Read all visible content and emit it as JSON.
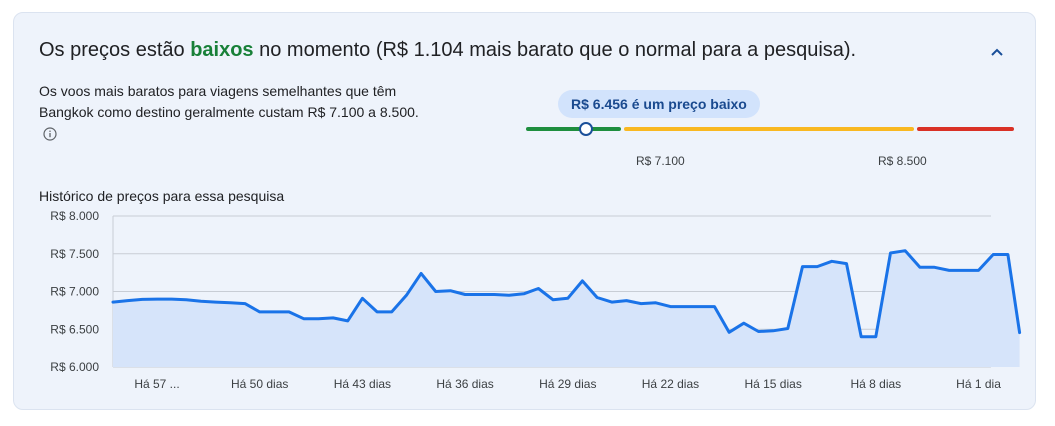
{
  "headline": {
    "prefix": "Os preços estão ",
    "emphasis": "baixos",
    "suffix": " no momento (R$ 1.104 mais barato que o normal para a pesquisa)."
  },
  "description": "Os voos mais baratos para viagens semelhantes que têm Bangkok como destino geralmente custam R$ 7.100 a 8.500.",
  "gauge": {
    "current_label": "R$ 6.456 é um preço baixo",
    "current_price": 6456,
    "low_threshold": 7100,
    "high_threshold": 8500,
    "tick_low": "R$ 7.100",
    "tick_high": "R$ 8.500",
    "colors": {
      "low": "#1e8e3e",
      "typical": "#f9b821",
      "high": "#d93025"
    }
  },
  "history_title": "Histórico de preços para essa pesquisa",
  "icons": {
    "collapse": "chevron-up-icon",
    "info": "info-icon"
  },
  "chart_data": {
    "type": "area",
    "ylim": [
      6000,
      8000
    ],
    "y_ticks": [
      {
        "value": 8000,
        "label": "R$ 8.000"
      },
      {
        "value": 7500,
        "label": "R$ 7.500"
      },
      {
        "value": 7000,
        "label": "R$ 7.000"
      },
      {
        "value": 6500,
        "label": "R$ 6.500"
      },
      {
        "value": 6000,
        "label": "R$ 6.000"
      }
    ],
    "days_ago_range": [
      60,
      0
    ],
    "x_ticks": [
      {
        "days_ago": 57,
        "label": "Há 57 ..."
      },
      {
        "days_ago": 50,
        "label": "Há 50 dias"
      },
      {
        "days_ago": 43,
        "label": "Há 43 dias"
      },
      {
        "days_ago": 36,
        "label": "Há 36 dias"
      },
      {
        "days_ago": 29,
        "label": "Há 29 dias"
      },
      {
        "days_ago": 22,
        "label": "Há 22 dias"
      },
      {
        "days_ago": 15,
        "label": "Há 15 dias"
      },
      {
        "days_ago": 8,
        "label": "Há 8 dias"
      },
      {
        "days_ago": 1,
        "label": "Há 1 dia"
      }
    ],
    "line_color": "#1a73e8",
    "fill_color": "#d6e4fa",
    "series": [
      {
        "values": [
          [
            60,
            6860
          ],
          [
            59,
            6880
          ],
          [
            58,
            6895
          ],
          [
            57,
            6900
          ],
          [
            56,
            6900
          ],
          [
            55,
            6890
          ],
          [
            54,
            6870
          ],
          [
            53,
            6860
          ],
          [
            52,
            6850
          ],
          [
            51,
            6840
          ],
          [
            50,
            6730
          ],
          [
            49,
            6730
          ],
          [
            48,
            6730
          ],
          [
            47,
            6640
          ],
          [
            46,
            6640
          ],
          [
            45,
            6650
          ],
          [
            44,
            6610
          ],
          [
            43,
            6910
          ],
          [
            42,
            6730
          ],
          [
            41,
            6730
          ],
          [
            40,
            6950
          ],
          [
            39,
            7240
          ],
          [
            38,
            7000
          ],
          [
            37,
            7010
          ],
          [
            36,
            6960
          ],
          [
            35,
            6960
          ],
          [
            34,
            6960
          ],
          [
            33,
            6950
          ],
          [
            32,
            6970
          ],
          [
            31,
            7040
          ],
          [
            30,
            6890
          ],
          [
            29,
            6910
          ],
          [
            28,
            7140
          ],
          [
            27,
            6920
          ],
          [
            26,
            6860
          ],
          [
            25,
            6880
          ],
          [
            24,
            6840
          ],
          [
            23,
            6850
          ],
          [
            22,
            6800
          ],
          [
            21,
            6800
          ],
          [
            20,
            6800
          ],
          [
            19,
            6800
          ],
          [
            18,
            6460
          ],
          [
            17,
            6580
          ],
          [
            16,
            6470
          ],
          [
            15,
            6480
          ],
          [
            14,
            6510
          ],
          [
            13,
            7330
          ],
          [
            12,
            7330
          ],
          [
            11,
            7400
          ],
          [
            10,
            7370
          ],
          [
            9,
            6400
          ],
          [
            8,
            6400
          ],
          [
            7,
            7510
          ],
          [
            6,
            7540
          ],
          [
            5,
            7320
          ],
          [
            4,
            7320
          ],
          [
            3,
            7280
          ],
          [
            2,
            7280
          ],
          [
            1,
            7280
          ],
          [
            0,
            7490
          ],
          [
            -1,
            7490
          ],
          [
            -1.8,
            6456
          ]
        ]
      }
    ]
  }
}
